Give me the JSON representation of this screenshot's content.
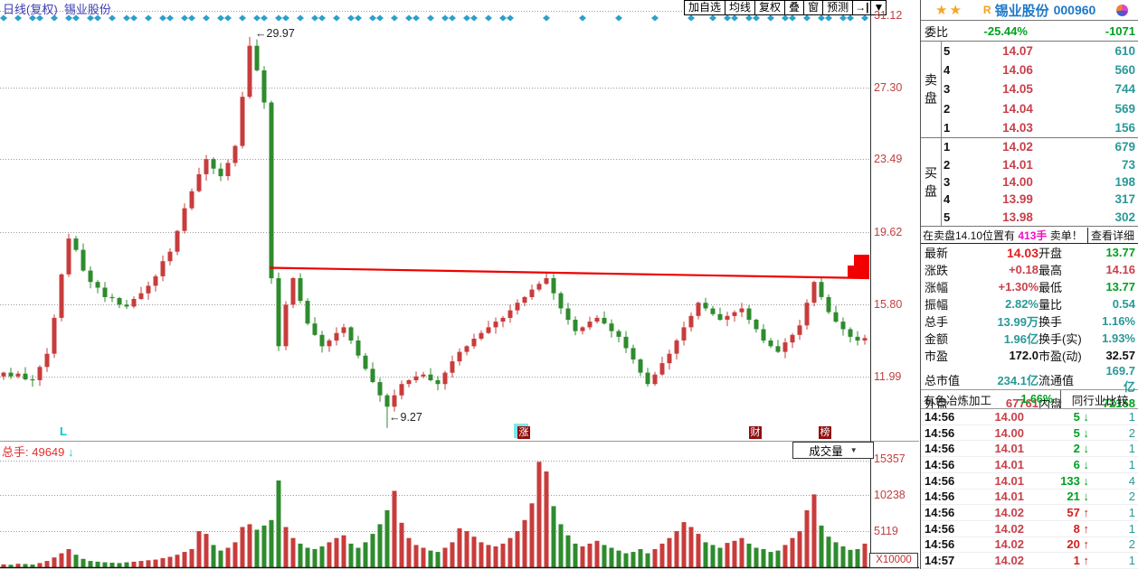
{
  "colors": {
    "up": "#c83c3c",
    "down": "#2e8b2e",
    "trendline": "#ee0000",
    "accent_blue": "#1e78c8",
    "diamond": "#2da0cc"
  },
  "chart": {
    "title": "日线(复权)  锡业股份",
    "toolbar": {
      "buttons": [
        "加自选",
        "均线",
        "复权",
        "叠",
        "窗",
        "预测"
      ],
      "jump_icon": "→|",
      "dropdown_icon": "▼"
    },
    "annotation_high": "←29.97",
    "annotation_low": "←9.27",
    "marker_left": "L",
    "event_markers": [
      "涨",
      "财",
      "榜"
    ],
    "volume_header": {
      "label": "总手: ",
      "value": "49649",
      "arrow": "↓",
      "indicator": "成交量",
      "caret": "▼",
      "unit": "X10000"
    },
    "chart_data": {
      "type": "candlestick",
      "price_axis": [
        31.12,
        27.3,
        23.49,
        19.62,
        15.8,
        11.99
      ],
      "volume_axis": [
        15357,
        10238,
        5119
      ],
      "high_label": 29.97,
      "low_label": 9.27,
      "trendline": {
        "x1_price": 17.75,
        "x2_price": 17.2
      },
      "closes": [
        12.2,
        12.0,
        12.15,
        11.85,
        11.8,
        12.5,
        13.2,
        15.1,
        17.4,
        19.3,
        18.7,
        17.6,
        17.0,
        16.7,
        16.2,
        16.15,
        15.8,
        15.7,
        16.1,
        16.4,
        16.8,
        17.3,
        18.1,
        18.6,
        19.7,
        20.9,
        21.8,
        22.7,
        23.5,
        23.0,
        22.6,
        23.3,
        24.2,
        26.8,
        29.5,
        28.2,
        26.5,
        17.2,
        13.6,
        15.8,
        17.2,
        16.0,
        14.8,
        14.2,
        13.6,
        13.9,
        14.3,
        14.6,
        13.9,
        13.1,
        12.4,
        11.7,
        11.0,
        10.4,
        11.0,
        11.6,
        11.8,
        12.0,
        12.1,
        11.8,
        11.6,
        12.2,
        12.8,
        13.3,
        13.6,
        14.0,
        14.3,
        14.6,
        14.9,
        15.1,
        15.5,
        15.9,
        16.2,
        16.6,
        16.9,
        17.2,
        16.4,
        15.6,
        15.0,
        14.4,
        14.6,
        14.9,
        15.1,
        14.8,
        14.4,
        14.1,
        13.5,
        12.9,
        12.2,
        11.6,
        12.1,
        12.7,
        13.2,
        13.9,
        14.6,
        15.2,
        15.9,
        15.6,
        15.3,
        15.0,
        15.2,
        15.4,
        15.6,
        15.0,
        14.5,
        13.9,
        13.6,
        13.3,
        13.8,
        14.2,
        14.7,
        15.9,
        17.0,
        16.2,
        15.4,
        14.9,
        14.5,
        14.1,
        13.9,
        14.03
      ],
      "volumes": [
        400,
        350,
        500,
        450,
        380,
        600,
        900,
        1400,
        2000,
        2600,
        1800,
        1200,
        900,
        800,
        700,
        650,
        600,
        700,
        800,
        900,
        1000,
        1100,
        1300,
        1500,
        1800,
        2200,
        2600,
        5200,
        4800,
        3200,
        2400,
        2800,
        3600,
        5800,
        6200,
        5400,
        6000,
        6800,
        12500,
        5800,
        4200,
        3400,
        2800,
        2600,
        3000,
        3600,
        4200,
        4600,
        3400,
        2800,
        3600,
        4800,
        6200,
        8200,
        11000,
        6400,
        4200,
        3200,
        2800,
        2400,
        2200,
        2800,
        3600,
        5600,
        5200,
        4400,
        3600,
        3200,
        3000,
        3400,
        4200,
        5200,
        6800,
        9200,
        15200,
        13800,
        8800,
        6200,
        4600,
        3400,
        3000,
        3400,
        3800,
        3200,
        2800,
        2400,
        2000,
        2200,
        2600,
        2000,
        2600,
        3400,
        4200,
        5200,
        6500,
        5800,
        4800,
        3600,
        3200,
        2800,
        3500,
        3800,
        4200,
        3400,
        2800,
        2600,
        2200,
        2400,
        3200,
        4200,
        5200,
        8200,
        10500,
        6000,
        4400,
        3600,
        3000,
        2500,
        2600,
        3400
      ]
    }
  },
  "panel": {
    "stars": "★★",
    "r_badge": "R",
    "name": "锡业股份",
    "code": "000960",
    "weibi": {
      "label": "委比",
      "pct": "-25.44%",
      "diff": "-1071"
    },
    "sell_label": "卖盘",
    "buy_label": "买盘",
    "sell": [
      {
        "level": "5",
        "price": "14.07",
        "vol": "610"
      },
      {
        "level": "4",
        "price": "14.06",
        "vol": "560"
      },
      {
        "level": "3",
        "price": "14.05",
        "vol": "744"
      },
      {
        "level": "2",
        "price": "14.04",
        "vol": "569"
      },
      {
        "level": "1",
        "price": "14.03",
        "vol": "156"
      }
    ],
    "buy": [
      {
        "level": "1",
        "price": "14.02",
        "vol": "679"
      },
      {
        "level": "2",
        "price": "14.01",
        "vol": "73"
      },
      {
        "level": "3",
        "price": "14.00",
        "vol": "198"
      },
      {
        "level": "4",
        "price": "13.99",
        "vol": "317"
      },
      {
        "level": "5",
        "price": "13.98",
        "vol": "302"
      }
    ],
    "notice": {
      "pre": "在卖盘14.10位置有 ",
      "highlight": "413手",
      "mid": " 卖单！",
      "link": "查看详细"
    },
    "stats": [
      {
        "l1": "最新",
        "v1": "14.03",
        "c1": "red-big",
        "l2": "开盘",
        "v2": "13.77",
        "c2": "green"
      },
      {
        "l1": "涨跌",
        "v1": "+0.18",
        "c1": "red",
        "l2": "最高",
        "v2": "14.16",
        "c2": "red"
      },
      {
        "l1": "涨幅",
        "v1": "+1.30%",
        "c1": "red",
        "l2": "最低",
        "v2": "13.77",
        "c2": "green"
      },
      {
        "l1": "振幅",
        "v1": "2.82%",
        "c1": "teal",
        "l2": "量比",
        "v2": "0.54",
        "c2": "teal"
      },
      {
        "l1": "总手",
        "v1": "13.99万",
        "c1": "teal",
        "l2": "换手",
        "v2": "1.16%",
        "c2": "teal"
      },
      {
        "l1": "金额",
        "v1": "1.96亿",
        "c1": "teal",
        "l2": "换手(实)",
        "v2": "1.93%",
        "c2": "teal"
      },
      {
        "l1": "市盈",
        "v1": "172.0",
        "c1": "black",
        "l2": "市盈(动)",
        "v2": "32.57",
        "c2": "black"
      },
      {
        "l1": "总市值",
        "v1": "234.1亿",
        "c1": "teal",
        "l2": "流通值",
        "v2": "169.7亿",
        "c2": "teal"
      },
      {
        "l1": "外盘",
        "v1": "67761",
        "c1": "red",
        "l2": "内盘",
        "v2": "72158",
        "c2": "green"
      }
    ],
    "sector": {
      "name": "有色冶炼加工",
      "pct": "-1.66%",
      "compare": "同行业比较"
    },
    "ticks": [
      {
        "time": "14:56",
        "price": "14.00",
        "vol": "5",
        "dir": "down",
        "count": "1"
      },
      {
        "time": "14:56",
        "price": "14.00",
        "vol": "5",
        "dir": "down",
        "count": "2"
      },
      {
        "time": "14:56",
        "price": "14.01",
        "vol": "2",
        "dir": "down",
        "count": "1"
      },
      {
        "time": "14:56",
        "price": "14.01",
        "vol": "6",
        "dir": "down",
        "count": "1"
      },
      {
        "time": "14:56",
        "price": "14.01",
        "vol": "133",
        "dir": "down",
        "count": "4"
      },
      {
        "time": "14:56",
        "price": "14.01",
        "vol": "21",
        "dir": "down",
        "count": "2"
      },
      {
        "time": "14:56",
        "price": "14.02",
        "vol": "57",
        "dir": "up",
        "count": "1"
      },
      {
        "time": "14:56",
        "price": "14.02",
        "vol": "8",
        "dir": "up",
        "count": "1"
      },
      {
        "time": "14:56",
        "price": "14.02",
        "vol": "20",
        "dir": "up",
        "count": "2"
      },
      {
        "time": "14:57",
        "price": "14.02",
        "vol": "1",
        "dir": "up",
        "count": "1"
      }
    ]
  }
}
